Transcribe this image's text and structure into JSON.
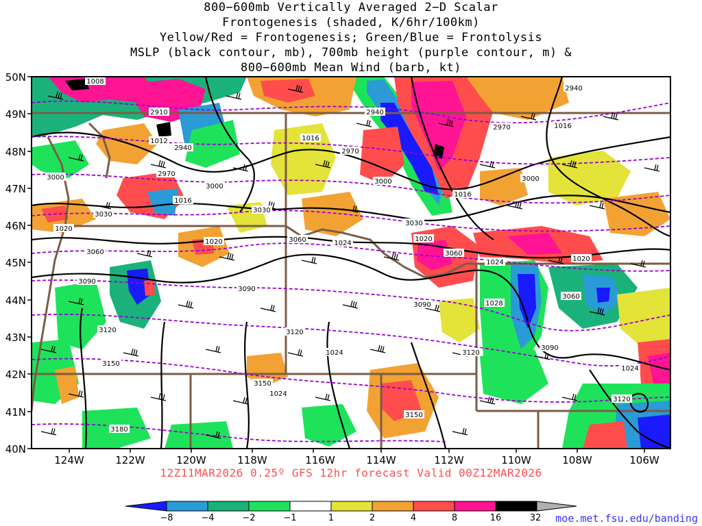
{
  "title": {
    "line1": "800−600mb Vertically Averaged 2−D Scalar",
    "line2": "Frontogenesis (shaded, K/6hr/100km)",
    "line3": "Yellow/Red = Frontogenesis;  Green/Blue = Frontolysis",
    "line4": "MSLP (black contour, mb), 700mb height (purple contour, m) &",
    "line5": "800−600mb Mean Wind (barb, kt)"
  },
  "map": {
    "lat_labels": [
      "50N",
      "49N",
      "48N",
      "47N",
      "46N",
      "45N",
      "44N",
      "43N",
      "42N",
      "41N",
      "40N"
    ],
    "lon_labels": [
      "124W",
      "122W",
      "120W",
      "118W",
      "116W",
      "114W",
      "112W",
      "110W",
      "108W",
      "106W"
    ],
    "mslp_labels": [
      "1008",
      "1012",
      "1016",
      "1016",
      "1016",
      "1016",
      "1020",
      "1020",
      "1020",
      "1020",
      "1024",
      "1024",
      "1024",
      "1024",
      "1024",
      "1028"
    ],
    "height_labels": [
      "2910",
      "2940",
      "2940",
      "2940",
      "2970",
      "2970",
      "2970",
      "3000",
      "3000",
      "3000",
      "3000",
      "3030",
      "3030",
      "3030",
      "3060",
      "3060",
      "3060",
      "3060",
      "3090",
      "3090",
      "3090",
      "3090",
      "3120",
      "3120",
      "3120",
      "3120",
      "3150",
      "3150",
      "3150",
      "3180"
    ],
    "colors": {
      "mslp": "#000000",
      "height": "#9a00d6",
      "borders": "#7b5c46",
      "barbs": "#000000"
    }
  },
  "colorbar": {
    "labels": [
      "−8",
      "−4",
      "−2",
      "−1",
      "1",
      "2",
      "4",
      "8",
      "16",
      "32"
    ],
    "colors": [
      "#1a1aff",
      "#2b9bd6",
      "#1ab27a",
      "#1ee35a",
      "#ffffff",
      "#e3e33a",
      "#f2a233",
      "#ff4d4d",
      "#ff1493",
      "#000000",
      "#b0b0b0"
    ]
  },
  "valid_time": "12Z11MAR2026 0.25º GFS 12hr forecast Valid 00Z12MAR2026",
  "credit": "moe.met.fsu.edu/banding"
}
